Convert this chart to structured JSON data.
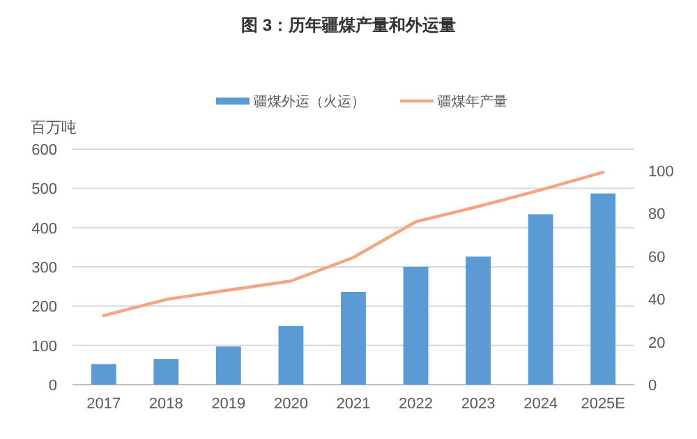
{
  "chart_data": {
    "type": "bar",
    "title": "图 3：历年疆煤产量和外运量",
    "ylabel": "百万吨",
    "categories": [
      "2017",
      "2018",
      "2019",
      "2020",
      "2021",
      "2022",
      "2023",
      "2024",
      "2025E"
    ],
    "series": [
      {
        "name": "疆煤外运（火运）",
        "axis": "y2",
        "color": "#5b9bd5",
        "values": [
          9.6,
          12,
          17.8,
          27.4,
          43.3,
          55,
          59.8,
          79.6,
          89.3
        ]
      },
      {
        "name": "疆煤年产量",
        "type": "line",
        "color": "#f4a582",
        "values": [
          176,
          217,
          241,
          264,
          324,
          415,
          454,
          496,
          541
        ]
      }
    ],
    "ylim": [
      0,
      600
    ],
    "yticks": [
      0,
      100,
      200,
      300,
      400,
      500,
      600
    ],
    "y2lim": [
      0,
      110
    ],
    "y2ticks": [
      0,
      20,
      40,
      60,
      80,
      100
    ],
    "grid": "y",
    "legend": "top"
  }
}
